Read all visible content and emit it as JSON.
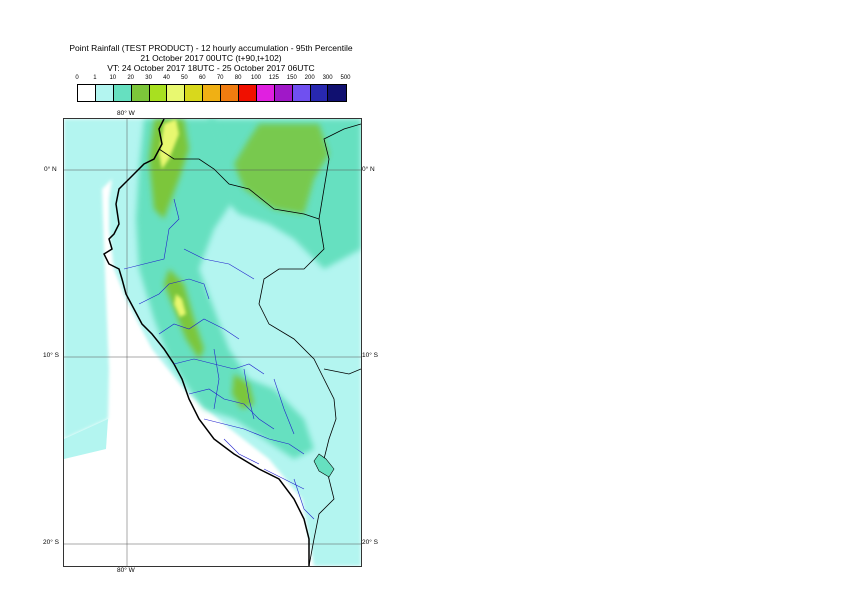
{
  "title": {
    "line1": "Point Rainfall (TEST PRODUCT) - 12 hourly accumulation - 95th Percentile",
    "line2": "21 October 2017 00UTC (t+90,t+102)",
    "line3": "VT: 24 October 2017 18UTC - 25 October 2017 06UTC"
  },
  "legend": {
    "thresholds": [
      "0",
      "1",
      "10",
      "20",
      "30",
      "40",
      "50",
      "60",
      "70",
      "80",
      "100",
      "125",
      "150",
      "200",
      "300",
      "500"
    ],
    "colors": [
      "#ffffff",
      "#b3f5f0",
      "#66e0c0",
      "#7cc63a",
      "#a8e020",
      "#e8f870",
      "#d8d81c",
      "#f0b014",
      "#f07c10",
      "#f01000",
      "#e020e0",
      "#a018c8",
      "#7050f0",
      "#2828b0",
      "#101070"
    ]
  },
  "axes": {
    "top_lon": "80° W",
    "bottom_lon": "80° W",
    "lat_0_left": "0° N",
    "lat_0_right": "0° N",
    "lat_10_left": "10° S",
    "lat_10_right": "10° S",
    "lat_20_left": "20° S",
    "lat_20_right": "20° S"
  }
}
